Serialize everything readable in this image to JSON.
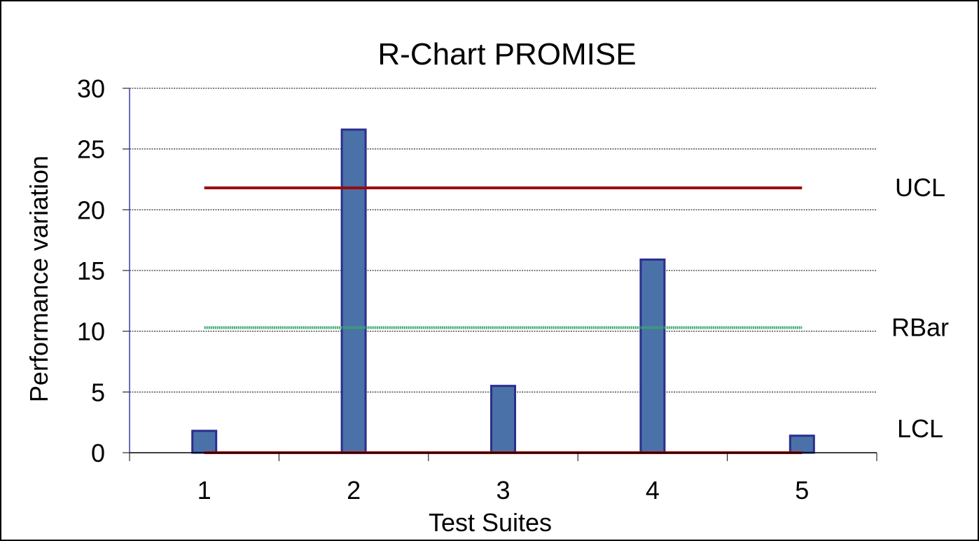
{
  "chart_data": {
    "type": "bar",
    "title": "R-Chart PROMISE",
    "xlabel": "Test Suites",
    "ylabel": "Performance variation",
    "categories": [
      "1",
      "2",
      "3",
      "4",
      "5"
    ],
    "series": [
      {
        "values": [
          1.8,
          26.6,
          5.5,
          15.9,
          1.4
        ]
      }
    ],
    "ylim": [
      0,
      30
    ],
    "yticks": [
      "0",
      "5",
      "10",
      "15",
      "20",
      "25",
      "30"
    ],
    "grid": true,
    "reference_lines": [
      {
        "label": "UCL",
        "value": 21.8,
        "color": "#9b0a0a",
        "style": "solid"
      },
      {
        "label": "RBar",
        "value": 10.3,
        "color": "#3aa86b",
        "style": "dotted"
      },
      {
        "label": "LCL",
        "value": 0,
        "color": "#9b0a0a",
        "style": "solid"
      }
    ],
    "colors": {
      "bar_fill": "#4a72a8",
      "bar_stroke": "#2b2e8f",
      "y_axis": "#3a3aa6",
      "grid": "#000000",
      "frame": "#000000"
    }
  }
}
